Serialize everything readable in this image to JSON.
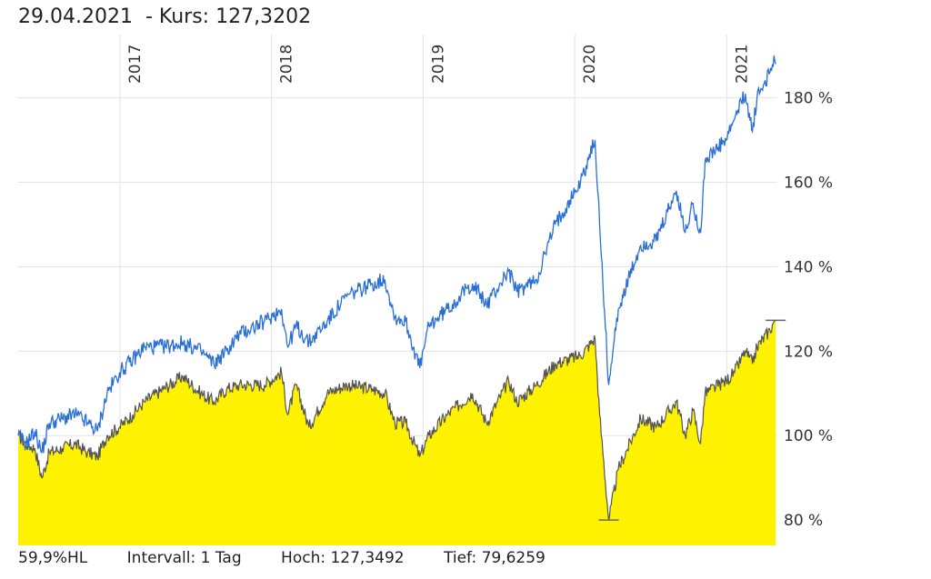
{
  "header": {
    "date": "29.04.2021",
    "price_text": "- Kurs: 127,3202"
  },
  "footer": {
    "label": "59,9%HL",
    "interval": "Intervall: 1 Tag",
    "high": "Hoch: 127,3492",
    "low": "Tief: 79,6259"
  },
  "colors": {
    "fund_fill": "#fff200",
    "fund_line": "#555555",
    "benchmark_line": "#2a6fd6",
    "grid": "#e3e3e3"
  },
  "chart_data": {
    "type": "area",
    "x_range": [
      "2016-05-01",
      "2021-05-03"
    ],
    "y_range": [
      74,
      195
    ],
    "y_unit": "%",
    "y_ticks": [
      80,
      100,
      120,
      140,
      160,
      180
    ],
    "y_tick_labels": [
      "80 %",
      "100 %",
      "120 %",
      "140 %",
      "160 %",
      "180 %"
    ],
    "x_ticks": [
      "2017-01-01",
      "2018-01-01",
      "2019-01-01",
      "2020-01-01",
      "2021-01-01"
    ],
    "x_tick_labels": [
      "2017",
      "2018",
      "2019",
      "2020",
      "2021"
    ],
    "grid": true,
    "legend": "none",
    "series": [
      {
        "style": "line",
        "points": [
          [
            "2016-05-01",
            100
          ],
          [
            "2016-05-20",
            98
          ],
          [
            "2016-06-10",
            101
          ],
          [
            "2016-06-27",
            96
          ],
          [
            "2016-07-15",
            103
          ],
          [
            "2016-08-15",
            104
          ],
          [
            "2016-09-15",
            105
          ],
          [
            "2016-10-15",
            103
          ],
          [
            "2016-11-08",
            101
          ],
          [
            "2016-12-01",
            110
          ],
          [
            "2016-12-31",
            115
          ],
          [
            "2017-02-01",
            118
          ],
          [
            "2017-03-01",
            121
          ],
          [
            "2017-04-15",
            121
          ],
          [
            "2017-06-01",
            122
          ],
          [
            "2017-07-15",
            120
          ],
          [
            "2017-08-15",
            117
          ],
          [
            "2017-09-15",
            120
          ],
          [
            "2017-10-15",
            124
          ],
          [
            "2017-12-15",
            127
          ],
          [
            "2018-01-25",
            130
          ],
          [
            "2018-02-09",
            121
          ],
          [
            "2018-03-01",
            126
          ],
          [
            "2018-04-01",
            122
          ],
          [
            "2018-05-15",
            127
          ],
          [
            "2018-07-01",
            133
          ],
          [
            "2018-09-01",
            136
          ],
          [
            "2018-10-01",
            137
          ],
          [
            "2018-10-25",
            128
          ],
          [
            "2018-11-20",
            127
          ],
          [
            "2018-12-24",
            116
          ],
          [
            "2019-01-15",
            126
          ],
          [
            "2019-03-01",
            130
          ],
          [
            "2019-04-30",
            136
          ],
          [
            "2019-06-03",
            131
          ],
          [
            "2019-07-26",
            139
          ],
          [
            "2019-08-15",
            134
          ],
          [
            "2019-10-01",
            137
          ],
          [
            "2019-11-15",
            150
          ],
          [
            "2020-01-15",
            160
          ],
          [
            "2020-02-19",
            170
          ],
          [
            "2020-03-01",
            150
          ],
          [
            "2020-03-23",
            112
          ],
          [
            "2020-04-15",
            130
          ],
          [
            "2020-06-08",
            145
          ],
          [
            "2020-07-15",
            146
          ],
          [
            "2020-09-02",
            158
          ],
          [
            "2020-09-23",
            148
          ],
          [
            "2020-10-12",
            155
          ],
          [
            "2020-10-30",
            148
          ],
          [
            "2020-11-10",
            165
          ],
          [
            "2020-12-31",
            170
          ],
          [
            "2021-01-20",
            175
          ],
          [
            "2021-02-15",
            181
          ],
          [
            "2021-03-04",
            172
          ],
          [
            "2021-03-15",
            180
          ],
          [
            "2021-04-15",
            186
          ],
          [
            "2021-04-25",
            190
          ],
          [
            "2021-04-29",
            188
          ]
        ]
      },
      {
        "style": "area",
        "points": [
          [
            "2016-05-01",
            100
          ],
          [
            "2016-05-20",
            98
          ],
          [
            "2016-06-10",
            97
          ],
          [
            "2016-06-27",
            90
          ],
          [
            "2016-07-15",
            96
          ],
          [
            "2016-08-15",
            97
          ],
          [
            "2016-09-15",
            98
          ],
          [
            "2016-10-15",
            96
          ],
          [
            "2016-11-08",
            95
          ],
          [
            "2016-12-01",
            100
          ],
          [
            "2016-12-31",
            102
          ],
          [
            "2017-02-01",
            105
          ],
          [
            "2017-03-01",
            108
          ],
          [
            "2017-04-15",
            111
          ],
          [
            "2017-06-01",
            114
          ],
          [
            "2017-07-15",
            110
          ],
          [
            "2017-08-15",
            108
          ],
          [
            "2017-09-15",
            111
          ],
          [
            "2017-10-15",
            112
          ],
          [
            "2017-12-15",
            112
          ],
          [
            "2018-01-25",
            115
          ],
          [
            "2018-02-09",
            105
          ],
          [
            "2018-03-01",
            112
          ],
          [
            "2018-04-01",
            102
          ],
          [
            "2018-05-15",
            110
          ],
          [
            "2018-07-01",
            112
          ],
          [
            "2018-09-01",
            111
          ],
          [
            "2018-10-01",
            110
          ],
          [
            "2018-10-25",
            103
          ],
          [
            "2018-11-20",
            103
          ],
          [
            "2018-12-24",
            95
          ],
          [
            "2019-01-15",
            100
          ],
          [
            "2019-03-01",
            105
          ],
          [
            "2019-04-30",
            110
          ],
          [
            "2019-06-03",
            103
          ],
          [
            "2019-07-26",
            113
          ],
          [
            "2019-08-15",
            108
          ],
          [
            "2019-10-01",
            112
          ],
          [
            "2019-11-15",
            117
          ],
          [
            "2020-01-15",
            119
          ],
          [
            "2020-02-19",
            123
          ],
          [
            "2020-03-01",
            105
          ],
          [
            "2020-03-23",
            80
          ],
          [
            "2020-04-15",
            92
          ],
          [
            "2020-06-08",
            104
          ],
          [
            "2020-07-15",
            102
          ],
          [
            "2020-09-02",
            108
          ],
          [
            "2020-09-23",
            100
          ],
          [
            "2020-10-12",
            106
          ],
          [
            "2020-10-30",
            98
          ],
          [
            "2020-11-10",
            110
          ],
          [
            "2020-12-31",
            113
          ],
          [
            "2021-01-20",
            115
          ],
          [
            "2021-02-15",
            120
          ],
          [
            "2021-03-04",
            117
          ],
          [
            "2021-03-15",
            121
          ],
          [
            "2021-04-15",
            125
          ],
          [
            "2021-04-25",
            127
          ],
          [
            "2021-04-29",
            127.32
          ]
        ]
      }
    ]
  }
}
